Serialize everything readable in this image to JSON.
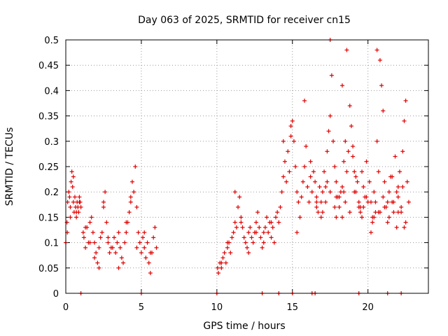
{
  "chart_data": {
    "type": "scatter",
    "title": "Day 063 of 2025, SRMTID for receiver cn15",
    "xlabel": "GPS time / hours",
    "ylabel": "SRMTID / TECUs",
    "xlim": [
      0,
      24
    ],
    "ylim": [
      0,
      0.5
    ],
    "grid": true,
    "x_ticks": [
      0,
      5,
      10,
      15,
      20
    ],
    "y_ticks": [
      0,
      0.05,
      0.1,
      0.15,
      0.2,
      0.25,
      0.3,
      0.35,
      0.4,
      0.45,
      0.5
    ],
    "x_tick_labels": [
      "0",
      "5",
      "10",
      "15",
      "20"
    ],
    "y_tick_labels": [
      "0",
      "0.05",
      "0.1",
      "0.15",
      "0.2",
      "0.25",
      "0.3",
      "0.35",
      "0.4",
      "0.45",
      "0.5"
    ],
    "marker": "+",
    "color": "#e00000",
    "series": [
      {
        "name": "SRMTID cn15",
        "x": [
          0.0,
          0.08,
          0.12,
          0.2,
          0.25,
          0.3,
          0.35,
          0.4,
          0.45,
          0.5,
          0.55,
          0.6,
          0.65,
          0.7,
          0.75,
          0.8,
          0.85,
          0.9,
          0.95,
          1.0,
          0.1,
          0.3,
          0.5,
          0.7,
          0.9,
          1.15,
          1.2,
          1.3,
          1.4,
          1.5,
          1.6,
          1.7,
          1.8,
          1.9,
          2.0,
          2.1,
          2.2,
          2.3,
          2.4,
          2.5,
          2.6,
          2.7,
          2.8,
          2.9,
          3.0,
          1.3,
          1.6,
          1.9,
          2.2,
          2.5,
          2.8,
          3.1,
          3.2,
          3.3,
          3.4,
          3.5,
          3.6,
          3.7,
          3.8,
          3.9,
          4.0,
          4.1,
          4.2,
          4.3,
          4.4,
          4.5,
          4.6,
          4.7,
          4.8,
          4.9,
          5.0,
          5.1,
          5.2,
          5.3,
          5.4,
          5.5,
          5.6,
          5.7,
          5.8,
          5.9,
          6.0,
          3.5,
          4.0,
          4.3,
          4.7,
          5.2,
          5.6,
          10.05,
          10.1,
          10.2,
          10.3,
          10.4,
          10.5,
          10.6,
          10.7,
          10.8,
          10.9,
          11.0,
          11.1,
          11.2,
          11.3,
          11.4,
          11.5,
          11.6,
          11.7,
          11.8,
          11.9,
          12.0,
          12.1,
          12.2,
          12.3,
          12.4,
          12.5,
          12.6,
          12.7,
          12.8,
          12.9,
          13.0,
          13.1,
          13.2,
          13.3,
          13.4,
          13.5,
          13.6,
          13.7,
          13.8,
          13.9,
          14.0,
          10.3,
          10.7,
          11.2,
          11.6,
          12.1,
          12.6,
          13.1,
          13.6,
          14.1,
          14.2,
          14.3,
          14.4,
          14.5,
          14.6,
          14.7,
          14.8,
          14.9,
          15.0,
          15.1,
          15.2,
          15.3,
          15.4,
          15.5,
          15.6,
          15.7,
          15.8,
          15.9,
          16.0,
          16.1,
          16.2,
          16.3,
          16.4,
          16.5,
          16.6,
          16.7,
          16.8,
          16.9,
          17.0,
          14.4,
          14.9,
          15.3,
          15.8,
          16.2,
          16.6,
          17.1,
          17.2,
          17.3,
          17.4,
          17.5,
          17.6,
          17.7,
          17.8,
          17.9,
          18.0,
          18.1,
          18.2,
          18.3,
          18.4,
          18.5,
          18.6,
          18.7,
          18.8,
          18.9,
          19.0,
          19.1,
          19.2,
          19.3,
          19.4,
          19.5,
          19.6,
          19.7,
          19.8,
          19.9,
          20.0,
          17.5,
          17.9,
          18.3,
          18.6,
          19.0,
          19.5,
          20.1,
          20.2,
          20.3,
          20.4,
          20.5,
          20.6,
          20.7,
          20.8,
          20.9,
          21.0,
          21.1,
          21.2,
          21.3,
          21.4,
          21.5,
          21.6,
          21.7,
          21.8,
          21.9,
          22.0,
          22.1,
          22.2,
          22.3,
          22.4,
          22.5,
          22.6,
          22.7,
          20.4,
          20.6,
          21.0,
          21.6,
          22.0,
          22.4,
          17.0,
          17.2,
          17.5,
          17.8,
          18.1,
          18.3,
          18.5,
          18.8,
          19.1,
          19.4,
          19.6,
          19.9,
          20.3,
          20.5,
          20.7,
          21.1,
          21.4,
          21.7,
          22.0,
          22.2,
          22.5,
          16.6,
          16.9,
          17.3,
          17.9,
          18.4,
          19.2,
          19.7,
          20.2,
          20.8,
          21.3,
          21.9,
          22.3,
          1.0,
          5.0,
          10.0,
          13.0,
          14.1,
          15.0,
          16.3,
          16.5,
          19.4,
          21.3,
          22.2
        ],
        "y": [
          0.1,
          0.14,
          0.18,
          0.2,
          0.19,
          0.17,
          0.22,
          0.24,
          0.21,
          0.18,
          0.16,
          0.19,
          0.17,
          0.15,
          0.18,
          0.17,
          0.16,
          0.19,
          0.18,
          0.17,
          0.12,
          0.15,
          0.23,
          0.16,
          0.18,
          0.12,
          0.11,
          0.09,
          0.13,
          0.1,
          0.14,
          0.15,
          0.12,
          0.1,
          0.08,
          0.06,
          0.09,
          0.11,
          0.12,
          0.17,
          0.2,
          0.14,
          0.1,
          0.08,
          0.09,
          0.13,
          0.1,
          0.07,
          0.05,
          0.18,
          0.11,
          0.09,
          0.11,
          0.08,
          0.1,
          0.12,
          0.09,
          0.07,
          0.06,
          0.1,
          0.12,
          0.14,
          0.16,
          0.19,
          0.22,
          0.2,
          0.25,
          0.17,
          0.12,
          0.1,
          0.08,
          0.11,
          0.09,
          0.07,
          0.1,
          0.06,
          0.04,
          0.08,
          0.11,
          0.13,
          0.09,
          0.05,
          0.14,
          0.18,
          0.09,
          0.12,
          0.08,
          0.05,
          0.04,
          0.06,
          0.05,
          0.07,
          0.08,
          0.06,
          0.09,
          0.1,
          0.08,
          0.11,
          0.12,
          0.14,
          0.13,
          0.17,
          0.19,
          0.15,
          0.13,
          0.11,
          0.1,
          0.09,
          0.12,
          0.13,
          0.11,
          0.1,
          0.12,
          0.14,
          0.16,
          0.13,
          0.11,
          0.09,
          0.12,
          0.13,
          0.15,
          0.12,
          0.14,
          0.11,
          0.13,
          0.1,
          0.15,
          0.16,
          0.06,
          0.1,
          0.2,
          0.14,
          0.08,
          0.12,
          0.1,
          0.14,
          0.14,
          0.17,
          0.2,
          0.23,
          0.26,
          0.22,
          0.28,
          0.24,
          0.31,
          0.34,
          0.3,
          0.25,
          0.2,
          0.18,
          0.15,
          0.19,
          0.22,
          0.25,
          0.29,
          0.21,
          0.18,
          0.23,
          0.2,
          0.24,
          0.22,
          0.19,
          0.16,
          0.21,
          0.18,
          0.2,
          0.3,
          0.33,
          0.12,
          0.38,
          0.26,
          0.17,
          0.24,
          0.21,
          0.28,
          0.32,
          0.35,
          0.43,
          0.3,
          0.25,
          0.22,
          0.19,
          0.17,
          0.2,
          0.15,
          0.26,
          0.3,
          0.24,
          0.28,
          0.37,
          0.33,
          0.29,
          0.24,
          0.2,
          0.22,
          0.18,
          0.16,
          0.24,
          0.21,
          0.19,
          0.26,
          0.18,
          0.5,
          0.15,
          0.41,
          0.48,
          0.27,
          0.17,
          0.22,
          0.18,
          0.15,
          0.2,
          0.16,
          0.3,
          0.24,
          0.46,
          0.41,
          0.36,
          0.22,
          0.17,
          0.14,
          0.2,
          0.23,
          0.18,
          0.16,
          0.27,
          0.13,
          0.21,
          0.24,
          0.17,
          0.28,
          0.34,
          0.38,
          0.22,
          0.18,
          0.15,
          0.48,
          0.19,
          0.23,
          0.16,
          0.13,
          0.16,
          0.18,
          0.2,
          0.17,
          0.19,
          0.21,
          0.18,
          0.16,
          0.2,
          0.17,
          0.15,
          0.19,
          0.14,
          0.18,
          0.16,
          0.17,
          0.15,
          0.18,
          0.19,
          0.16,
          0.14,
          0.18,
          0.15,
          0.22,
          0.19,
          0.2,
          0.23,
          0.17,
          0.12,
          0.16,
          0.18,
          0.2,
          0.21,
          0,
          0,
          0,
          0,
          0,
          0,
          0,
          0,
          0,
          0,
          0
        ]
      }
    ]
  }
}
